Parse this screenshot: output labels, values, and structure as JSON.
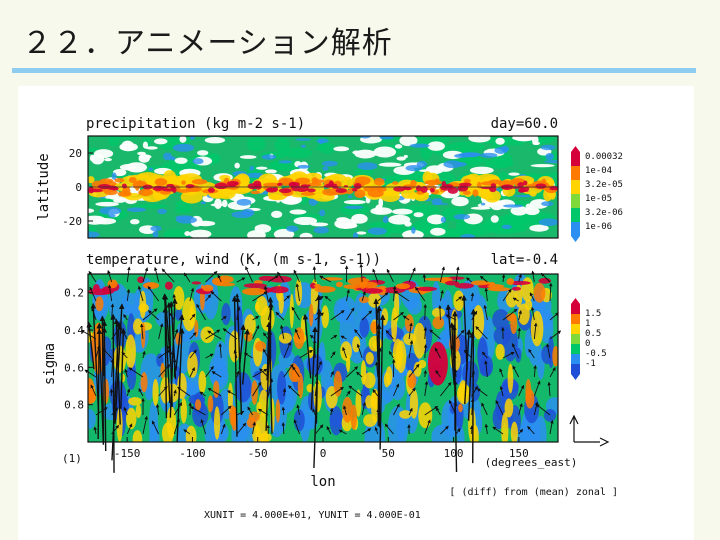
{
  "slide": {
    "title": "２２．アニメーション解析"
  },
  "figure": {
    "xunit_yunit": "XUNIT = 4.000E+01, YUNIT = 4.000E-01"
  },
  "colors": {
    "title_rule": "#8ecdf0",
    "slide_bg": "#f7f9ec",
    "wind_arrows": "#111111"
  },
  "chart_data": [
    {
      "type": "heatmap",
      "title": "precipitation (kg m-2 s-1)",
      "corner_label": "day=60.0",
      "ylabel": "latitude",
      "ylim": [
        -30,
        30
      ],
      "y_ticks": [
        20,
        0,
        -20
      ],
      "y_tick_labels": [
        "20",
        "0",
        "-20"
      ],
      "xlim": [
        -180,
        180
      ],
      "colorbar": {
        "labels": [
          "0.00032",
          "1e-04",
          "3.2e-05",
          "1e-05",
          "3.2e-06",
          "1e-06"
        ],
        "colors": [
          "#d5003a",
          "#ff7a00",
          "#ffd400",
          "#7fd93a",
          "#00c76a",
          "#2a8ff0"
        ]
      },
      "features": "rain band concentrated along equator (lat 0)",
      "grid": false
    },
    {
      "type": "heatmap",
      "title": "temperature, wind (K, (m s-1, s-1))",
      "corner_label": "lat=-0.4",
      "ylabel": "sigma",
      "y_ticks": [
        0.2,
        0.4,
        0.6,
        0.8
      ],
      "y_tick_labels": [
        "0.2",
        "0.4",
        "0.6",
        "0.8"
      ],
      "ylim": [
        1,
        0.1
      ],
      "y_bottom_label": "(1)",
      "xlabel": "lon",
      "x_ticks": [
        -150,
        -100,
        -50,
        0,
        50,
        100,
        150
      ],
      "x_tick_labels": [
        "-150",
        "-100",
        "-50",
        "0",
        "50",
        "100",
        "150"
      ],
      "x_unit_label": "(degrees_east)",
      "xlim": [
        -180,
        180
      ],
      "colorbar": {
        "labels": [
          "1.5",
          "1",
          "0.5",
          "0",
          "-0.5",
          "-1"
        ],
        "colors": [
          "#d5003a",
          "#ff7a00",
          "#ffd400",
          "#7fd93a",
          "#00c76a",
          "#2a8ff0",
          "#1f4fd6"
        ]
      },
      "note": "[ (diff) from (mean) zonal ]",
      "overlay": "wind vectors",
      "grid": false
    }
  ]
}
